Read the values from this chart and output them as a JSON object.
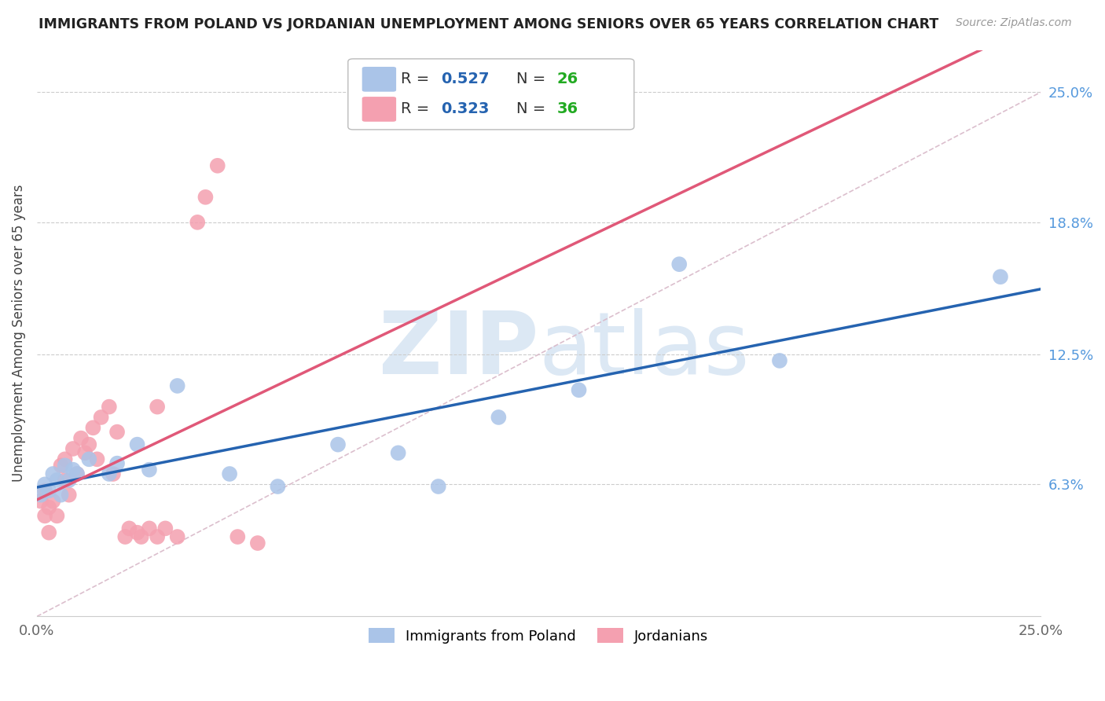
{
  "title": "IMMIGRANTS FROM POLAND VS JORDANIAN UNEMPLOYMENT AMONG SENIORS OVER 65 YEARS CORRELATION CHART",
  "source": "Source: ZipAtlas.com",
  "ylabel": "Unemployment Among Seniors over 65 years",
  "xlim": [
    0.0,
    0.25
  ],
  "ylim": [
    0.0,
    0.27
  ],
  "xticklabels": [
    "0.0%",
    "",
    "",
    "",
    "",
    "25.0%"
  ],
  "xtick_pos": [
    0.0,
    0.05,
    0.1,
    0.15,
    0.2,
    0.25
  ],
  "ytick_right_labels": [
    "25.0%",
    "18.8%",
    "12.5%",
    "6.3%"
  ],
  "ytick_right_values": [
    0.25,
    0.188,
    0.125,
    0.063
  ],
  "background_color": "#ffffff",
  "poland_scatter_x": [
    0.001,
    0.002,
    0.003,
    0.004,
    0.005,
    0.006,
    0.007,
    0.008,
    0.009,
    0.01,
    0.013,
    0.018,
    0.02,
    0.025,
    0.028,
    0.035,
    0.048,
    0.06,
    0.075,
    0.09,
    0.1,
    0.115,
    0.135,
    0.16,
    0.185,
    0.24
  ],
  "poland_scatter_y": [
    0.058,
    0.063,
    0.06,
    0.068,
    0.065,
    0.058,
    0.072,
    0.065,
    0.07,
    0.068,
    0.075,
    0.068,
    0.073,
    0.082,
    0.07,
    0.11,
    0.068,
    0.062,
    0.082,
    0.078,
    0.062,
    0.095,
    0.108,
    0.168,
    0.122,
    0.162
  ],
  "poland_R": 0.527,
  "poland_N": 26,
  "poland_color": "#aac4e8",
  "poland_line_color": "#2563b0",
  "jordan_scatter_x": [
    0.001,
    0.002,
    0.002,
    0.003,
    0.003,
    0.004,
    0.005,
    0.006,
    0.007,
    0.007,
    0.008,
    0.009,
    0.01,
    0.011,
    0.012,
    0.013,
    0.014,
    0.015,
    0.016,
    0.018,
    0.019,
    0.02,
    0.022,
    0.023,
    0.025,
    0.026,
    0.028,
    0.03,
    0.03,
    0.032,
    0.035,
    0.04,
    0.042,
    0.045,
    0.05,
    0.055
  ],
  "jordan_scatter_y": [
    0.055,
    0.048,
    0.06,
    0.052,
    0.04,
    0.055,
    0.048,
    0.072,
    0.065,
    0.075,
    0.058,
    0.08,
    0.068,
    0.085,
    0.078,
    0.082,
    0.09,
    0.075,
    0.095,
    0.1,
    0.068,
    0.088,
    0.038,
    0.042,
    0.04,
    0.038,
    0.042,
    0.038,
    0.1,
    0.042,
    0.038,
    0.188,
    0.2,
    0.215,
    0.038,
    0.035
  ],
  "jordan_R": 0.323,
  "jordan_N": 36,
  "jordan_color": "#f4a0b0",
  "jordan_line_color": "#e05878",
  "diag_line_color": "#d8b8c8",
  "legend_R_color": "#2563b0",
  "legend_N_color": "#22aa22"
}
